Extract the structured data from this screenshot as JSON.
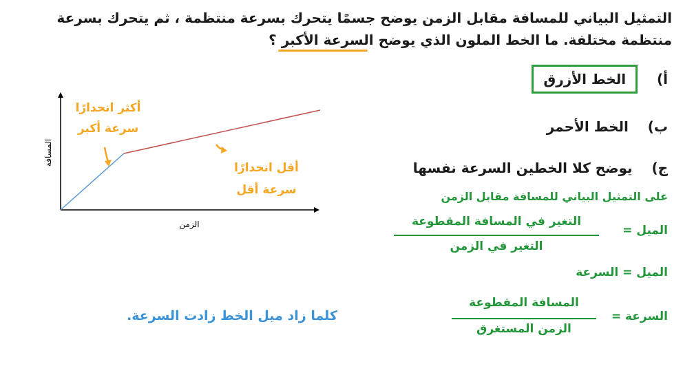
{
  "question": {
    "line1": "التمثيل البياني للمسافة مقابل الزمن يوضح جسمًا يتحرك بسرعة منتظمة ، ثم يتحرك بسرعة",
    "line2": "منتظمة مختلفة. ما الخط الملون الذي يوضح السرعة الأكبر ؟"
  },
  "graph": {
    "y_label": "المسافة",
    "x_label": "الزمن",
    "note_steeper_line1": "أكثر انحدارًا",
    "note_steeper_line2": "سرعة أكبر",
    "note_shallower_line1": "أقل انحدارًا",
    "note_shallower_line2": "سرعة أقل",
    "colors": {
      "blue_line": "#5b9bd5",
      "red_line": "#c0504d",
      "axis": "#000000"
    },
    "blue_segment": {
      "start": [
        0,
        0
      ],
      "end": [
        1,
        1
      ]
    },
    "red_segment": {
      "start": [
        1,
        1
      ],
      "end": [
        4,
        2.8
      ]
    }
  },
  "options": {
    "a": {
      "letter": "أ)",
      "text": "الخط الأزرق",
      "selected": true
    },
    "b": {
      "letter": "ب)",
      "text": "الخط الأحمر"
    },
    "c": {
      "letter": "ج)",
      "text": "يوضح كلا الخطين السرعة نفسها"
    }
  },
  "explanation": {
    "intro": "على التمثيل البياني للمسافة مقابل الزمن",
    "slope_label": "الميل =",
    "slope_num": "التغير في المسافة المقطوعة",
    "slope_den": "التغير في الزمن",
    "slope_equals_speed": "الميل = السرعة",
    "speed_label": "السرعة =",
    "speed_num": "المسافة المقطوعة",
    "speed_den": "الزمن المستغرق"
  },
  "conclusion": "كلما زاد ميل الخط زادت السرعة."
}
